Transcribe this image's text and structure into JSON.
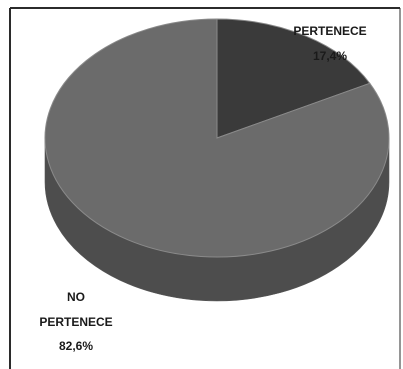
{
  "chart_data": {
    "type": "pie",
    "title": "",
    "slices": [
      {
        "label": "PERTENECE",
        "value": 17.4,
        "value_label": "17,4%",
        "color": "#3a3a3a"
      },
      {
        "label": "NO PERTENECE",
        "value": 82.6,
        "value_label": "82,6%",
        "color": "#6b6b6b"
      }
    ],
    "legend": "none",
    "style": "3d"
  },
  "labels": {
    "slice1_name": "PERTENECE",
    "slice1_value": "17,4%",
    "slice2_name_line1": "NO",
    "slice2_name_line2": "PERTENECE",
    "slice2_value": "82,6%"
  }
}
